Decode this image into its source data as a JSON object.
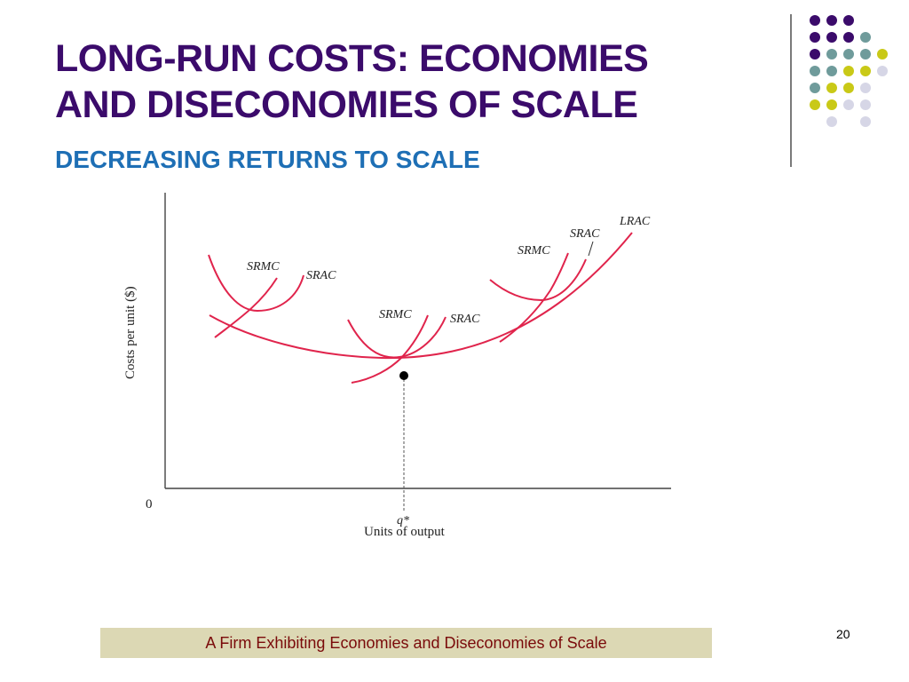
{
  "slide": {
    "title_line1": "LONG-RUN COSTS: ECONOMIES",
    "title_line2": "AND DISECONOMIES OF SCALE",
    "subtitle": "DECREASING RETURNS TO SCALE",
    "caption": "A Firm Exhibiting Economies and Diseconomies of Scale",
    "page_number": "20"
  },
  "colors": {
    "title": "#3b0b6b",
    "subtitle": "#1e6fb5",
    "curve": "#e0244c",
    "caption_bg": "#dcd8b4",
    "caption_text": "#7a0a0a",
    "dot_purple": "#3b0b6b",
    "dot_teal": "#6f9b9b",
    "dot_yellow": "#c9c917",
    "dot_lavender": "#d6d6e6"
  },
  "figure": {
    "y_axis_label": "Costs per unit ($)",
    "x_axis_label": "Units of output",
    "origin_label": "0",
    "q_star_label": "q*",
    "curve_labels": {
      "lrac": "LRAC",
      "srmc_1": "SRMC",
      "srac_1": "SRAC",
      "srmc_2": "SRMC",
      "srac_2": "SRAC",
      "srmc_3": "SRMC",
      "srac_3": "SRAC"
    }
  }
}
